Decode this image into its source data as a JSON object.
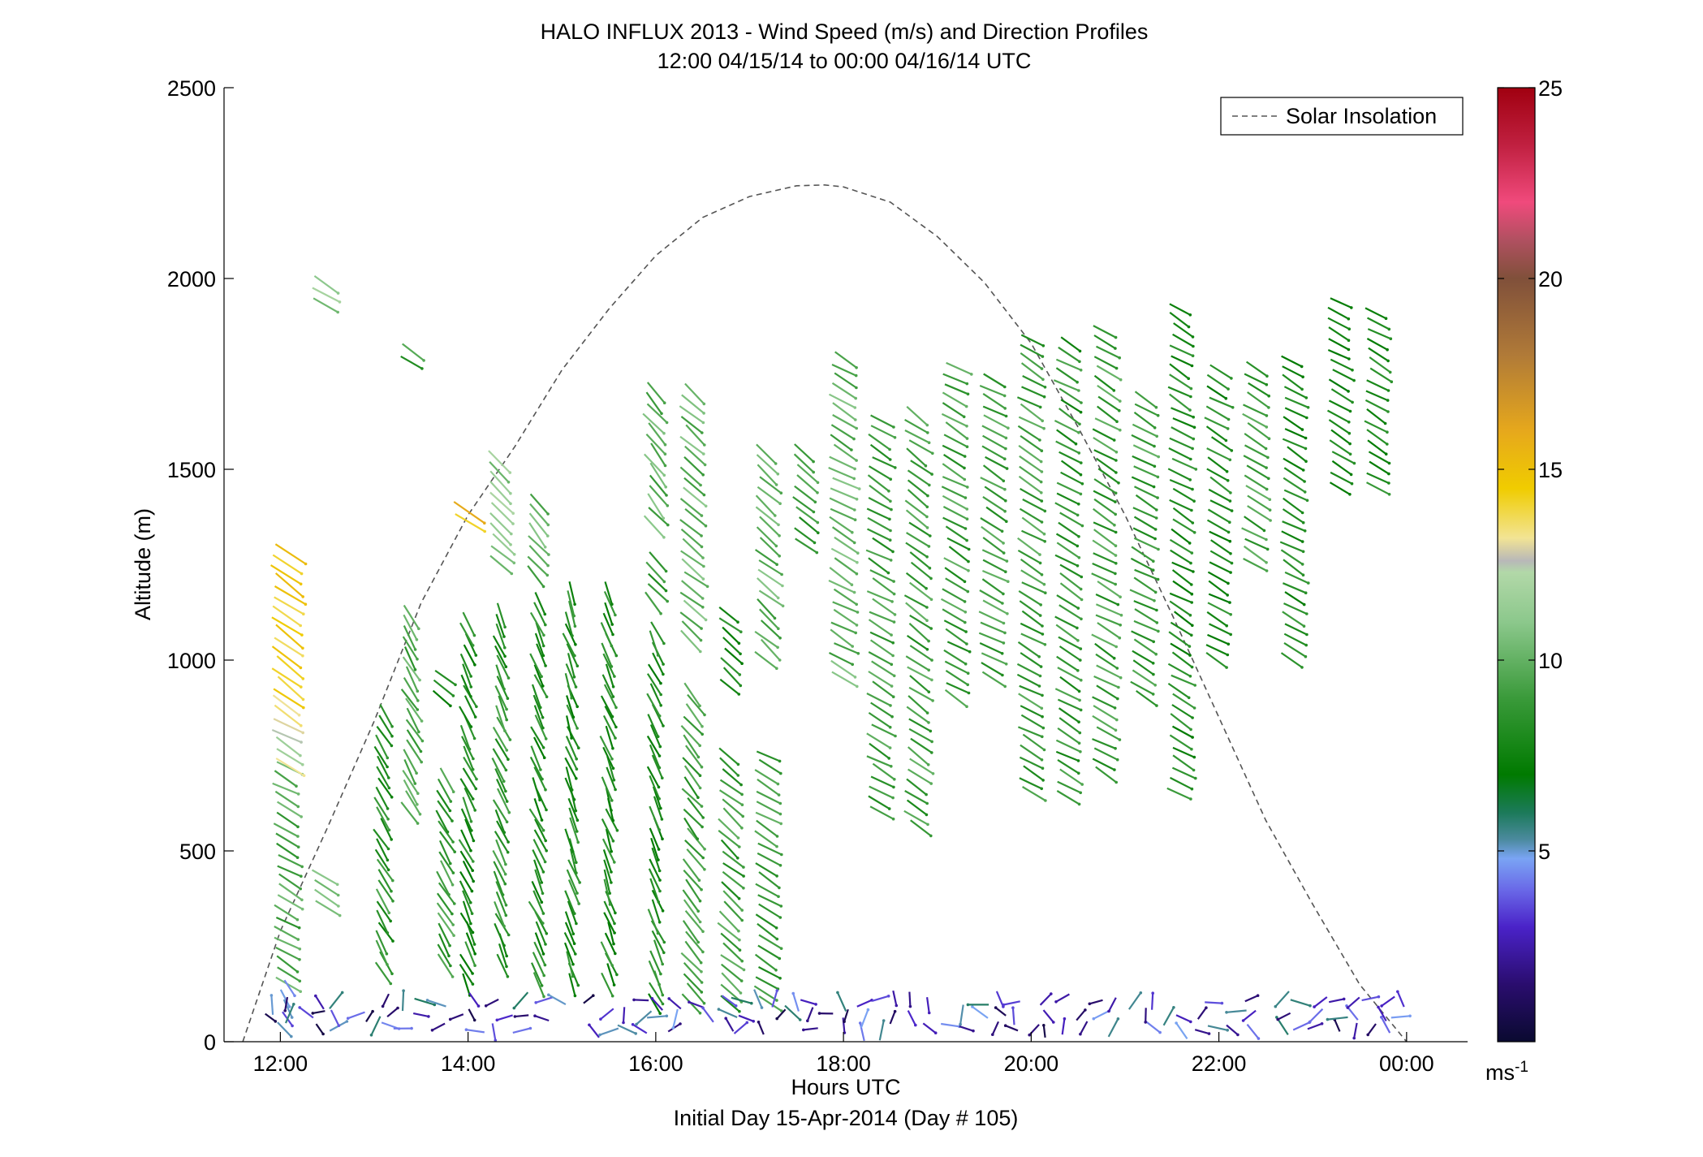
{
  "chart_data": {
    "type": "wind-barb-profile",
    "title": "HALO INFLUX 2013 - Wind Speed (m/s) and Direction Profiles",
    "subtitle": "12:00 04/15/14 to 00:00 04/16/14  UTC",
    "xlabel": "Hours UTC",
    "xlabel2": "Initial Day 15-Apr-2014 (Day # 105)",
    "ylabel": "Altitude (m)",
    "x_range_hours": [
      11.4,
      24.65
    ],
    "ylim": [
      0,
      2500
    ],
    "x_ticks": [
      {
        "value": 12,
        "label": "12:00"
      },
      {
        "value": 14,
        "label": "14:00"
      },
      {
        "value": 16,
        "label": "16:00"
      },
      {
        "value": 18,
        "label": "18:00"
      },
      {
        "value": 20,
        "label": "20:00"
      },
      {
        "value": 22,
        "label": "22:00"
      },
      {
        "value": 24,
        "label": "00:00"
      }
    ],
    "y_ticks": [
      {
        "value": 0,
        "label": "0"
      },
      {
        "value": 500,
        "label": "500"
      },
      {
        "value": 1000,
        "label": "1000"
      },
      {
        "value": 1500,
        "label": "1500"
      },
      {
        "value": 2000,
        "label": "2000"
      },
      {
        "value": 2500,
        "label": "2500"
      }
    ],
    "legend": {
      "position": "top-right",
      "entries": [
        {
          "name": "Solar Insolation",
          "style": "dashed",
          "color": "#555555"
        }
      ]
    },
    "colorbar": {
      "min": 0,
      "max": 25,
      "ticks": [
        {
          "value": 5,
          "label": "5"
        },
        {
          "value": 10,
          "label": "10"
        },
        {
          "value": 15,
          "label": "15"
        },
        {
          "value": 20,
          "label": "20"
        },
        {
          "value": 25,
          "label": "25"
        }
      ],
      "unit_label": "ms",
      "unit_exponent": "-1",
      "stops": [
        {
          "v": 0,
          "c": "#0a0a30"
        },
        {
          "v": 1.5,
          "c": "#2a0d6e"
        },
        {
          "v": 3,
          "c": "#4a22c8"
        },
        {
          "v": 4,
          "c": "#6a6ae8"
        },
        {
          "v": 4.8,
          "c": "#7aa4f4"
        },
        {
          "v": 5.3,
          "c": "#4b8a9e"
        },
        {
          "v": 6,
          "c": "#1c7a5a"
        },
        {
          "v": 7,
          "c": "#007a00"
        },
        {
          "v": 9,
          "c": "#3a9a3a"
        },
        {
          "v": 11,
          "c": "#8cc88c"
        },
        {
          "v": 12.3,
          "c": "#b2d8a8"
        },
        {
          "v": 12.6,
          "c": "#b8b8b8"
        },
        {
          "v": 13.2,
          "c": "#f2e494"
        },
        {
          "v": 14.5,
          "c": "#f0cc00"
        },
        {
          "v": 16,
          "c": "#e6a81c"
        },
        {
          "v": 18,
          "c": "#b07a38"
        },
        {
          "v": 20,
          "c": "#80503a"
        },
        {
          "v": 21,
          "c": "#b05060"
        },
        {
          "v": 22,
          "c": "#f04a7c"
        },
        {
          "v": 23.5,
          "c": "#c02040"
        },
        {
          "v": 25,
          "c": "#a00010"
        }
      ]
    },
    "solar_insolation": {
      "x_hours": [
        11.6,
        12.0,
        12.5,
        13.0,
        13.5,
        14.0,
        14.5,
        15.0,
        15.5,
        16.0,
        16.5,
        17.0,
        17.5,
        17.8,
        18.0,
        18.5,
        19.0,
        19.5,
        20.0,
        20.5,
        21.0,
        21.5,
        22.0,
        22.5,
        23.0,
        23.5,
        24.0
      ],
      "y_m": [
        0,
        290,
        560,
        840,
        1150,
        1380,
        1560,
        1760,
        1920,
        2060,
        2160,
        2215,
        2243,
        2245,
        2240,
        2200,
        2110,
        1990,
        1830,
        1610,
        1380,
        1120,
        850,
        580,
        360,
        150,
        0
      ]
    },
    "wind_field": {
      "description": "Wind vectors sampled along profiles; each sample gives time (hours UTC), altitude (m), speed (m/s) and direction (degrees, meteorological).",
      "profiles": [
        {
          "x": 12.08,
          "segments": [
            {
              "y0": 150,
              "y1": 720,
              "speed": 9.5,
              "dir": 300
            },
            {
              "y0": 720,
              "y1": 900,
              "speed": 12.5,
              "dir": 300
            },
            {
              "y0": 900,
              "y1": 1280,
              "speed": 14.5,
              "dir": 305
            },
            {
              "y0": 60,
              "y1": 150,
              "speed": 4,
              "dir": 330
            }
          ]
        },
        {
          "x": 12.5,
          "segments": [
            {
              "y0": 1930,
              "y1": 1990,
              "speed": 11,
              "dir": 300
            },
            {
              "y0": 350,
              "y1": 450,
              "speed": 10,
              "dir": 300
            }
          ]
        },
        {
          "x": 13.1,
          "segments": [
            {
              "y0": 180,
              "y1": 880,
              "speed": 8.5,
              "dir": 330
            }
          ]
        },
        {
          "x": 13.4,
          "segments": [
            {
              "y0": 600,
              "y1": 1130,
              "speed": 9.5,
              "dir": 330
            },
            {
              "y0": 1780,
              "y1": 1810,
              "speed": 9,
              "dir": 300
            }
          ]
        },
        {
          "x": 13.75,
          "segments": [
            {
              "y0": 200,
              "y1": 690,
              "speed": 9,
              "dir": 330
            },
            {
              "y0": 900,
              "y1": 960,
              "speed": 8,
              "dir": 310
            }
          ]
        },
        {
          "x": 14.0,
          "segments": [
            {
              "y0": 150,
              "y1": 1100,
              "speed": 8,
              "dir": 335
            },
            {
              "y0": 1360,
              "y1": 1410,
              "speed": 15,
              "dir": 300
            }
          ]
        },
        {
          "x": 14.35,
          "segments": [
            {
              "y0": 200,
              "y1": 1120,
              "speed": 8.5,
              "dir": 335
            },
            {
              "y0": 1250,
              "y1": 1520,
              "speed": 11,
              "dir": 310
            }
          ]
        },
        {
          "x": 14.75,
          "segments": [
            {
              "y0": 150,
              "y1": 1170,
              "speed": 8,
              "dir": 335
            },
            {
              "y0": 1220,
              "y1": 1430,
              "speed": 10,
              "dir": 320
            }
          ]
        },
        {
          "x": 15.1,
          "segments": [
            {
              "y0": 150,
              "y1": 1190,
              "speed": 8,
              "dir": 340
            }
          ]
        },
        {
          "x": 15.5,
          "segments": [
            {
              "y0": 150,
              "y1": 1200,
              "speed": 8,
              "dir": 340
            }
          ]
        },
        {
          "x": 16.0,
          "segments": [
            {
              "y0": 100,
              "y1": 1080,
              "speed": 8,
              "dir": 335
            },
            {
              "y0": 1150,
              "y1": 1270,
              "speed": 9,
              "dir": 320
            },
            {
              "y0": 1350,
              "y1": 1710,
              "speed": 10,
              "dir": 320
            }
          ]
        },
        {
          "x": 16.4,
          "segments": [
            {
              "y0": 100,
              "y1": 920,
              "speed": 9,
              "dir": 320
            },
            {
              "y0": 1050,
              "y1": 1700,
              "speed": 10,
              "dir": 310
            }
          ]
        },
        {
          "x": 16.8,
          "segments": [
            {
              "y0": 100,
              "y1": 760,
              "speed": 9,
              "dir": 310
            },
            {
              "y0": 930,
              "y1": 1120,
              "speed": 8,
              "dir": 310
            }
          ]
        },
        {
          "x": 17.2,
          "segments": [
            {
              "y0": 100,
              "y1": 750,
              "speed": 9,
              "dir": 300
            },
            {
              "y0": 1000,
              "y1": 1560,
              "speed": 10,
              "dir": 310
            }
          ]
        },
        {
          "x": 17.6,
          "segments": [
            {
              "y0": 1300,
              "y1": 1560,
              "speed": 9,
              "dir": 310
            }
          ]
        },
        {
          "x": 18.0,
          "segments": [
            {
              "y0": 950,
              "y1": 1810,
              "speed": 10,
              "dir": 300
            }
          ]
        },
        {
          "x": 18.4,
          "segments": [
            {
              "y0": 600,
              "y1": 1640,
              "speed": 9,
              "dir": 300
            }
          ]
        },
        {
          "x": 18.8,
          "segments": [
            {
              "y0": 560,
              "y1": 1650,
              "speed": 9,
              "dir": 305
            }
          ]
        },
        {
          "x": 19.2,
          "segments": [
            {
              "y0": 900,
              "y1": 1780,
              "speed": 9,
              "dir": 300
            }
          ]
        },
        {
          "x": 19.6,
          "segments": [
            {
              "y0": 950,
              "y1": 1740,
              "speed": 9,
              "dir": 300
            }
          ]
        },
        {
          "x": 20.0,
          "segments": [
            {
              "y0": 650,
              "y1": 1860,
              "speed": 9,
              "dir": 300
            }
          ]
        },
        {
          "x": 20.4,
          "segments": [
            {
              "y0": 640,
              "y1": 1850,
              "speed": 8.5,
              "dir": 300
            }
          ]
        },
        {
          "x": 20.8,
          "segments": [
            {
              "y0": 700,
              "y1": 1880,
              "speed": 9,
              "dir": 300
            }
          ]
        },
        {
          "x": 21.2,
          "segments": [
            {
              "y0": 900,
              "y1": 1700,
              "speed": 9,
              "dir": 300
            }
          ]
        },
        {
          "x": 21.6,
          "segments": [
            {
              "y0": 650,
              "y1": 1940,
              "speed": 8,
              "dir": 300
            }
          ]
        },
        {
          "x": 22.0,
          "segments": [
            {
              "y0": 1000,
              "y1": 1780,
              "speed": 8,
              "dir": 300
            }
          ]
        },
        {
          "x": 22.4,
          "segments": [
            {
              "y0": 1250,
              "y1": 1780,
              "speed": 9,
              "dir": 300
            }
          ]
        },
        {
          "x": 22.8,
          "segments": [
            {
              "y0": 1000,
              "y1": 1800,
              "speed": 8,
              "dir": 300
            }
          ]
        },
        {
          "x": 23.3,
          "segments": [
            {
              "y0": 1450,
              "y1": 1940,
              "speed": 8,
              "dir": 300
            }
          ]
        },
        {
          "x": 23.7,
          "segments": [
            {
              "y0": 1450,
              "y1": 1930,
              "speed": 8,
              "dir": 300
            }
          ]
        }
      ],
      "surface_layer": {
        "y0": 20,
        "y1": 110,
        "speed_range": [
          0.5,
          6
        ],
        "x_range_hours": [
          11.9,
          24.0
        ]
      }
    }
  }
}
